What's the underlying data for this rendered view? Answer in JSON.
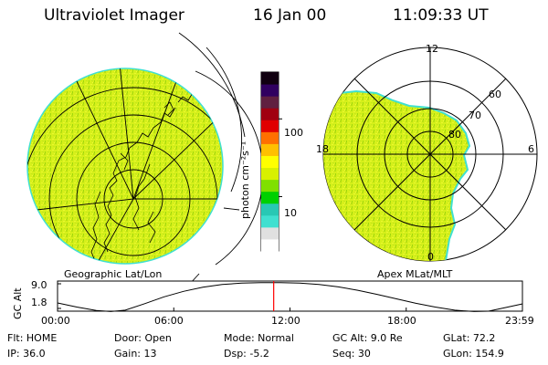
{
  "header": {
    "instrument": "Ultraviolet Imager",
    "date": "16 Jan 00",
    "time": "11:09:33 UT"
  },
  "panels": {
    "left_label": "Geographic Lat/Lon",
    "right_label": "Apex MLat/MLT"
  },
  "colorbar": {
    "unit_label": "photon cm⁻²s⁻¹",
    "ticks": [
      "100",
      "10"
    ],
    "tick_values": [
      100,
      10
    ],
    "range": [
      2,
      400
    ],
    "colors": [
      "#ffffff",
      "#e0e0e0",
      "#40e0d0",
      "#28c8b4",
      "#00d000",
      "#80e000",
      "#d8f000",
      "#ffff00",
      "#ffc000",
      "#ff7000",
      "#e00000",
      "#a00010",
      "#602040",
      "#300060",
      "#100010"
    ]
  },
  "polar": {
    "mlt_labels": [
      "12",
      "6",
      "0",
      "18"
    ],
    "lat_labels": [
      "60",
      "70",
      "80"
    ]
  },
  "timeline": {
    "ylabel": "GC Alt",
    "y_ticks": [
      "9.0",
      "1.8"
    ],
    "ylim": [
      1.0,
      9.8
    ],
    "x_ticks": [
      "00:00",
      "06:00",
      "12:00",
      "18:00",
      "23:59"
    ],
    "current_time_hours": 11.159,
    "orbit_samples": [
      [
        0.0,
        3.4
      ],
      [
        1.0,
        2.2
      ],
      [
        2.0,
        1.2
      ],
      [
        2.75,
        0.9
      ],
      [
        3.5,
        1.3
      ],
      [
        4.5,
        3.2
      ],
      [
        5.5,
        5.2
      ],
      [
        6.5,
        6.8
      ],
      [
        7.5,
        8.0
      ],
      [
        8.5,
        8.8
      ],
      [
        9.5,
        9.2
      ],
      [
        10.5,
        9.35
      ],
      [
        11.5,
        9.35
      ],
      [
        12.5,
        9.2
      ],
      [
        13.5,
        8.8
      ],
      [
        14.5,
        8.1
      ],
      [
        15.5,
        7.1
      ],
      [
        16.5,
        5.9
      ],
      [
        17.5,
        4.6
      ],
      [
        18.5,
        3.3
      ],
      [
        19.5,
        2.2
      ],
      [
        20.5,
        1.3
      ],
      [
        21.5,
        0.9
      ],
      [
        22.25,
        1.0
      ],
      [
        23.0,
        1.9
      ],
      [
        23.98,
        3.1
      ]
    ]
  },
  "footer": {
    "flt": "Flt: HOME",
    "ip": "IP: 36.0",
    "door": "Door: Open",
    "gain": "Gain: 13",
    "mode": "Mode: Normal",
    "dsp": "Dsp:    -5.2",
    "gc_alt": "GC Alt: 9.0 Re",
    "seq": "Seq: 30",
    "glat": "GLat:  72.2",
    "glon": "GLon: 154.9"
  },
  "colors": {
    "fill": "#d6f01a",
    "fill_dark": "#b4de10",
    "rim": "#40e0d0",
    "marker": "#ff0000"
  }
}
